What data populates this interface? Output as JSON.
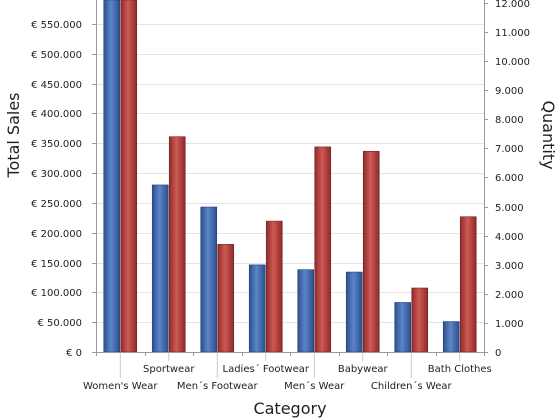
{
  "chart_data": {
    "type": "bar",
    "xlabel": "Category",
    "ylabel": "Total Sales",
    "y2label": "Quantity",
    "categories": [
      "Women's Wear",
      "Sportwear",
      "Men´s Footwear",
      "Ladies´ Footwear",
      "Men´s Wear",
      "Babywear",
      "Children´s Wear",
      "Bath Clothes"
    ],
    "category_label_rows": [
      "lower",
      "upper",
      "lower",
      "upper",
      "lower",
      "upper",
      "lower",
      "upper"
    ],
    "series": [
      {
        "name": "Total Sales",
        "axis": "left",
        "color": "#3a63a8",
        "values": [
          590000,
          280000,
          243000,
          146000,
          138000,
          134000,
          83000,
          51000
        ]
      },
      {
        "name": "Quantity",
        "axis": "right",
        "color": "#b03a3a",
        "values": [
          12300,
          7400,
          3700,
          4500,
          7050,
          6900,
          2200,
          4650
        ]
      }
    ],
    "ylim": [
      0,
      590000
    ],
    "y2lim": [
      0,
      12100
    ],
    "yticks": [
      0,
      50000,
      100000,
      150000,
      200000,
      250000,
      300000,
      350000,
      400000,
      450000,
      500000,
      550000
    ],
    "ytick_labels": [
      "€ 0",
      "€ 50.000",
      "€ 100.000",
      "€ 150.000",
      "€ 200.000",
      "€ 250.000",
      "€ 300.000",
      "€ 350.000",
      "€ 400.000",
      "€ 450.000",
      "€ 500.000",
      "€ 550.000"
    ],
    "y2ticks": [
      0,
      1000,
      2000,
      3000,
      4000,
      5000,
      6000,
      7000,
      8000,
      9000,
      10000,
      11000,
      12000
    ],
    "y2tick_labels": [
      "0",
      "1.000",
      "2.000",
      "3.000",
      "4.000",
      "5.000",
      "6.000",
      "7.000",
      "8.000",
      "9.000",
      "10.000",
      "11.000",
      "12.000"
    ],
    "grid": true,
    "legend": "none"
  }
}
